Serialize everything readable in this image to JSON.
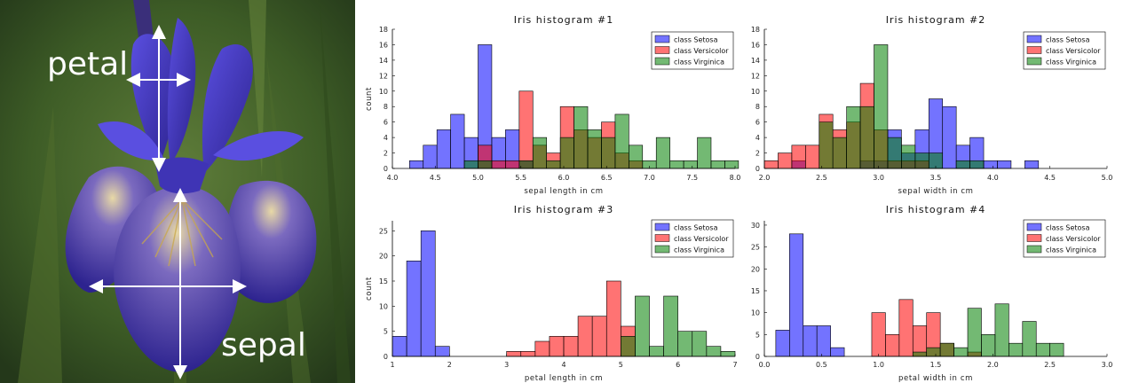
{
  "photo": {
    "labels": {
      "petal": "petal",
      "sepal": "sepal"
    },
    "colors": {
      "bg": "#3d5c26",
      "petal": "#4a3fc8",
      "petal_dark": "#2d238f",
      "veins": "#c9a84a",
      "arrow": "#ffffff"
    }
  },
  "legend_labels": [
    "class Setosa",
    "class Versicolor",
    "class Virginica"
  ],
  "colors": {
    "setosa": "#0000ff",
    "versicolor": "#ff0000",
    "virginica": "#008000"
  },
  "chart_data": [
    {
      "type": "bar",
      "title": "Iris histogram #1",
      "xlabel": "sepal length in cm",
      "ylabel": "count",
      "xlim": [
        4.0,
        8.0
      ],
      "ylim": [
        0,
        18
      ],
      "xticks": [
        4.0,
        4.5,
        5.0,
        5.5,
        6.0,
        6.5,
        7.0,
        7.5,
        8.0
      ],
      "xtick_labels": [
        "4.0",
        "4.5",
        "5.0",
        "5.5",
        "6.0",
        "6.5",
        "7.0",
        "7.5",
        "8.0"
      ],
      "yticks": [
        0,
        2,
        4,
        6,
        8,
        10,
        12,
        14,
        16,
        18
      ],
      "ytick_labels": [
        "0",
        "2",
        "4",
        "6",
        "8",
        "10",
        "12",
        "14",
        "16",
        "18"
      ],
      "bin_start": 4.2,
      "bin_width": 0.16,
      "series": [
        {
          "name": "class Setosa",
          "values": [
            1,
            3,
            5,
            7,
            4,
            16,
            4,
            5,
            1,
            0,
            0,
            0,
            0,
            0,
            0,
            0,
            0,
            0,
            0,
            0,
            0,
            0,
            0,
            0
          ]
        },
        {
          "name": "class Versicolor",
          "values": [
            0,
            0,
            0,
            0,
            0,
            3,
            1,
            1,
            10,
            3,
            2,
            8,
            5,
            4,
            6,
            2,
            1,
            0,
            0,
            0,
            0,
            0,
            0,
            0
          ]
        },
        {
          "name": "class Virginica",
          "values": [
            0,
            0,
            0,
            0,
            1,
            1,
            0,
            0,
            1,
            4,
            1,
            4,
            8,
            5,
            4,
            7,
            3,
            1,
            4,
            1,
            1,
            4,
            1,
            1
          ]
        }
      ]
    },
    {
      "type": "bar",
      "title": "Iris histogram #2",
      "xlabel": "sepal width in cm",
      "ylabel": "",
      "xlim": [
        2.0,
        5.0
      ],
      "ylim": [
        0,
        18
      ],
      "xticks": [
        2.0,
        2.5,
        3.0,
        3.5,
        4.0,
        4.5,
        5.0
      ],
      "xtick_labels": [
        "2.0",
        "2.5",
        "3.0",
        "3.5",
        "4.0",
        "4.5",
        "5.0"
      ],
      "yticks": [
        0,
        2,
        4,
        6,
        8,
        10,
        12,
        14,
        16,
        18
      ],
      "ytick_labels": [
        "0",
        "2",
        "4",
        "6",
        "8",
        "10",
        "12",
        "14",
        "16",
        "18"
      ],
      "bin_start": 2.0,
      "bin_width": 0.12,
      "series": [
        {
          "name": "class Setosa",
          "values": [
            0,
            0,
            1,
            0,
            0,
            0,
            0,
            1,
            1,
            5,
            2,
            5,
            9,
            8,
            3,
            4,
            1,
            1,
            0,
            1,
            0,
            0,
            0,
            0
          ]
        },
        {
          "name": "class Versicolor",
          "values": [
            1,
            2,
            3,
            3,
            7,
            5,
            6,
            11,
            5,
            1,
            1,
            1,
            0,
            0,
            0,
            0,
            0,
            0,
            0,
            0,
            0,
            0,
            0,
            0
          ]
        },
        {
          "name": "class Virginica",
          "values": [
            0,
            0,
            0,
            0,
            6,
            4,
            8,
            8,
            16,
            4,
            3,
            2,
            2,
            0,
            1,
            1,
            0,
            0,
            0,
            0,
            0,
            0,
            0,
            0
          ]
        }
      ]
    },
    {
      "type": "bar",
      "title": "Iris histogram #3",
      "xlabel": "petal length in cm",
      "ylabel": "count",
      "xlim": [
        1,
        7
      ],
      "ylim": [
        0,
        27
      ],
      "xticks": [
        1,
        2,
        3,
        4,
        5,
        6,
        7
      ],
      "xtick_labels": [
        "1",
        "2",
        "3",
        "4",
        "5",
        "6",
        "7"
      ],
      "yticks": [
        0,
        5,
        10,
        15,
        20,
        25
      ],
      "ytick_labels": [
        "0",
        "5",
        "10",
        "15",
        "20",
        "25"
      ],
      "bin_start": 1.0,
      "bin_width": 0.25,
      "series": [
        {
          "name": "class Setosa",
          "values": [
            4,
            19,
            25,
            2,
            0,
            0,
            0,
            0,
            0,
            0,
            0,
            0,
            0,
            0,
            0,
            0,
            0,
            0,
            0,
            0,
            0,
            0,
            0,
            0
          ]
        },
        {
          "name": "class Versicolor",
          "values": [
            0,
            0,
            0,
            0,
            0,
            0,
            0,
            0,
            1,
            1,
            3,
            4,
            4,
            8,
            8,
            15,
            6,
            0,
            0,
            0,
            0,
            0,
            0,
            0
          ]
        },
        {
          "name": "class Virginica",
          "values": [
            0,
            0,
            0,
            0,
            0,
            0,
            0,
            0,
            0,
            0,
            0,
            0,
            0,
            0,
            0,
            0,
            4,
            12,
            2,
            12,
            5,
            5,
            2,
            1
          ]
        }
      ]
    },
    {
      "type": "bar",
      "title": "Iris histogram #4",
      "xlabel": "petal width in cm",
      "ylabel": "",
      "xlim": [
        0.0,
        3.0
      ],
      "ylim": [
        0,
        31
      ],
      "xticks": [
        0.0,
        0.5,
        1.0,
        1.5,
        2.0,
        2.5,
        3.0
      ],
      "xtick_labels": [
        "0.0",
        "0.5",
        "1.0",
        "1.5",
        "2.0",
        "2.5",
        "3.0"
      ],
      "yticks": [
        0,
        5,
        10,
        15,
        20,
        25,
        30
      ],
      "ytick_labels": [
        "0",
        "5",
        "10",
        "15",
        "20",
        "25",
        "30"
      ],
      "bin_start": 0.1,
      "bin_width": 0.12,
      "series": [
        {
          "name": "class Setosa",
          "values": [
            6,
            28,
            7,
            7,
            2,
            0,
            0,
            0,
            0,
            0,
            0,
            0,
            0,
            0,
            0,
            0,
            0,
            0,
            0,
            0,
            0,
            0
          ]
        },
        {
          "name": "class Versicolor",
          "values": [
            0,
            0,
            0,
            0,
            0,
            0,
            0,
            10,
            5,
            13,
            7,
            10,
            3,
            0,
            1,
            0,
            0,
            0,
            0,
            0,
            0,
            0
          ]
        },
        {
          "name": "class Virginica",
          "values": [
            0,
            0,
            0,
            0,
            0,
            0,
            0,
            0,
            0,
            0,
            1,
            2,
            3,
            2,
            11,
            5,
            12,
            3,
            8,
            3,
            3,
            0
          ]
        }
      ]
    }
  ]
}
